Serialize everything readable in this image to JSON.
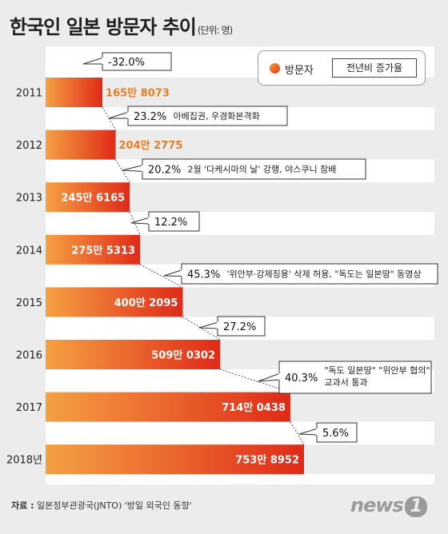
{
  "title": "한국인 일본 방문자 추이",
  "unit": "(단위: 명)",
  "legend": {
    "series_label": "방문자",
    "growth_label": "전년비 증가율"
  },
  "source": {
    "label": "자료 :",
    "text": "일본정부관광국(JNTO) '방일 외국인 동향'"
  },
  "logo": {
    "text": "news",
    "mark": "1"
  },
  "colors": {
    "bar_start": "#f5a042",
    "bar_end": "#df2a18",
    "value_orange": "#f07a1c",
    "background": "#ececec"
  },
  "chart_data": {
    "type": "bar",
    "orientation": "horizontal",
    "categories": [
      "2011",
      "2012",
      "2013",
      "2014",
      "2015",
      "2016",
      "2017",
      "2018년"
    ],
    "values": [
      1658073,
      2042775,
      2456165,
      2755313,
      4002095,
      5090302,
      7140438,
      7538952
    ],
    "value_labels": [
      "165만 8073",
      "204만 2775",
      "245만 6165",
      "275만 5313",
      "400만 2095",
      "509만 0302",
      "714만 0438",
      "753만 8952"
    ],
    "growth": [
      {
        "rate": "-32.0%",
        "note": ""
      },
      {
        "rate": "23.2%",
        "note": "아베집권, 우경화본격화"
      },
      {
        "rate": "20.2%",
        "note": "2월 '다케시마의 날' 강행, 야스쿠니 참배"
      },
      {
        "rate": "12.2%",
        "note": ""
      },
      {
        "rate": "45.3%",
        "note": "'위안부·강제징용' 삭제 허용, \"독도는 일본땅\" 동영상"
      },
      {
        "rate": "27.2%",
        "note": ""
      },
      {
        "rate": "40.3%",
        "note": "\"독도 일본땅\" \"위안부 협의\"\n교과서 통과"
      },
      {
        "rate": "5.6%",
        "note": ""
      }
    ]
  }
}
